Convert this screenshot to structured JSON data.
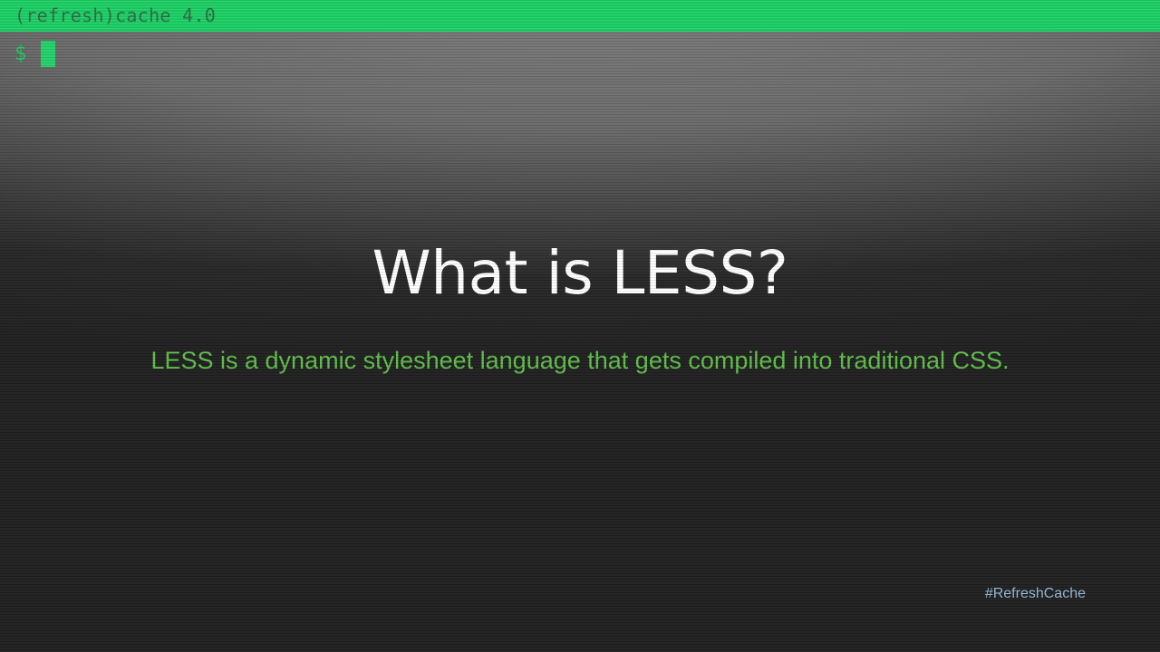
{
  "terminal": {
    "title": "(refresh)cache 4.0",
    "prompt": "$"
  },
  "slide": {
    "heading": "What is LESS?",
    "description": "LESS is a dynamic stylesheet language that gets compiled into traditional CSS.",
    "hashtag": "#RefreshCache"
  },
  "colors": {
    "accent_green": "#22c55e",
    "heading": "#ffffff",
    "description": "#5fbf4a",
    "hashtag": "#93b8d8"
  }
}
